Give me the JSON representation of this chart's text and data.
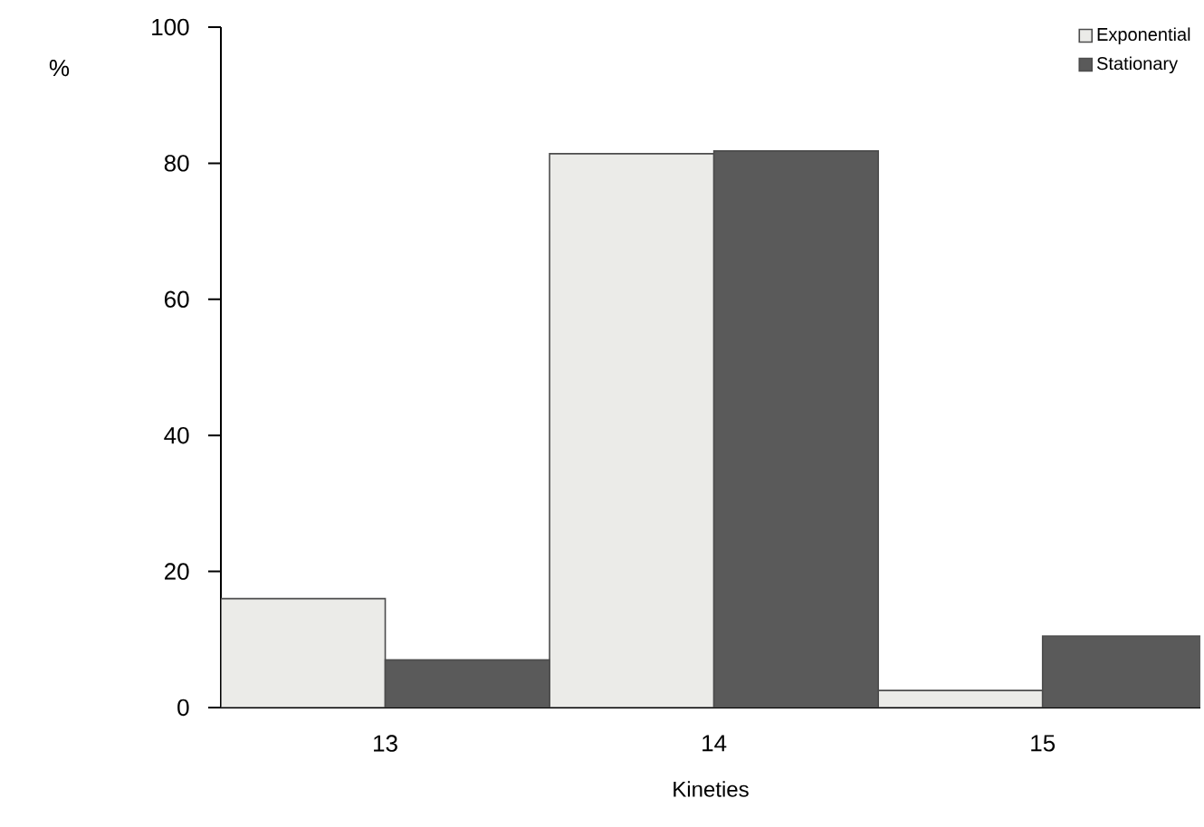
{
  "chart_data": {
    "type": "bar",
    "xlabel": "Kineties",
    "ylabel": "%",
    "categories": [
      "13",
      "14",
      "15"
    ],
    "series": [
      {
        "name": "Exponential",
        "color": "#ebebe8",
        "values": [
          16,
          81.4,
          2.5
        ]
      },
      {
        "name": "Stationary",
        "color": "#5a5a5a",
        "values": [
          7,
          81.8,
          10.5
        ]
      }
    ],
    "ylim": [
      0,
      100
    ],
    "yticks": [
      0,
      20,
      40,
      60,
      80,
      100
    ],
    "legend": "top right",
    "grid": false
  }
}
